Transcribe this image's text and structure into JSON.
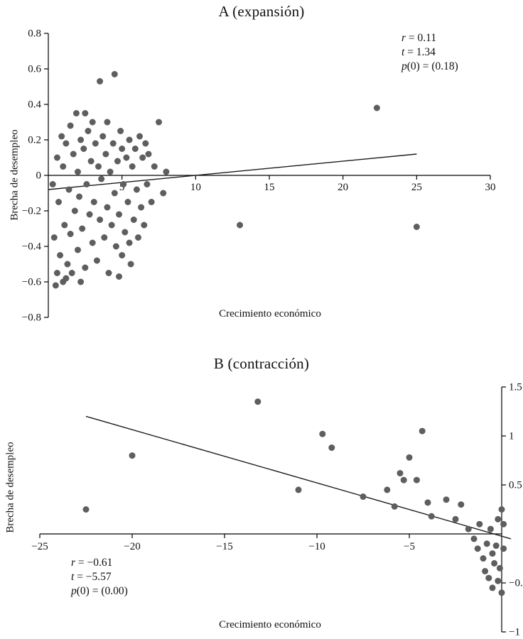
{
  "page": {
    "background": "#ffffff",
    "point_color": "#5e5e5e",
    "axis_color": "#000000"
  },
  "chart_data": [
    {
      "type": "scatter",
      "panel_label": "A",
      "title": "A (expansión)",
      "xlabel": "Crecimiento económico",
      "ylabel": "Brecha de desempleo",
      "xlim": [
        0,
        30
      ],
      "ylim": [
        -0.8,
        0.8
      ],
      "xticks": [
        5,
        10,
        15,
        20,
        25,
        30
      ],
      "yticks": [
        0.8,
        0.6,
        0.4,
        0.2,
        0,
        -0.2,
        -0.4,
        -0.6,
        -0.8
      ],
      "yaxis_side": "left",
      "grid": false,
      "r": 0.11,
      "t": 1.34,
      "p": 0.18,
      "stats_lines": [
        {
          "italic": "r",
          "normal": " = 0.11"
        },
        {
          "italic": "t",
          "normal": " = 1.34"
        },
        {
          "italic": "p",
          "normal": "(0) = (0.18)"
        }
      ],
      "trendline": {
        "x1": 0,
        "y1": -0.08,
        "x2": 25,
        "y2": 0.12
      },
      "points": [
        [
          0.3,
          -0.05
        ],
        [
          0.4,
          -0.35
        ],
        [
          0.5,
          -0.62
        ],
        [
          0.6,
          0.1
        ],
        [
          0.6,
          -0.55
        ],
        [
          0.7,
          -0.15
        ],
        [
          0.8,
          -0.45
        ],
        [
          0.9,
          0.22
        ],
        [
          1.0,
          -0.6
        ],
        [
          1.0,
          0.05
        ],
        [
          1.1,
          -0.28
        ],
        [
          1.2,
          0.18
        ],
        [
          1.2,
          -0.58
        ],
        [
          1.3,
          -0.5
        ],
        [
          1.4,
          -0.08
        ],
        [
          1.5,
          0.28
        ],
        [
          1.5,
          -0.33
        ],
        [
          1.6,
          -0.55
        ],
        [
          1.7,
          0.12
        ],
        [
          1.8,
          -0.2
        ],
        [
          1.9,
          0.35
        ],
        [
          2.0,
          -0.42
        ],
        [
          2.0,
          0.02
        ],
        [
          2.1,
          -0.12
        ],
        [
          2.2,
          0.2
        ],
        [
          2.2,
          -0.6
        ],
        [
          2.3,
          -0.3
        ],
        [
          2.4,
          0.15
        ],
        [
          2.5,
          0.35
        ],
        [
          2.5,
          -0.52
        ],
        [
          2.6,
          -0.05
        ],
        [
          2.7,
          0.25
        ],
        [
          2.8,
          -0.22
        ],
        [
          2.9,
          0.08
        ],
        [
          3.0,
          -0.38
        ],
        [
          3.0,
          0.3
        ],
        [
          3.1,
          -0.15
        ],
        [
          3.2,
          0.18
        ],
        [
          3.3,
          -0.48
        ],
        [
          3.4,
          0.05
        ],
        [
          3.5,
          0.53
        ],
        [
          3.5,
          -0.25
        ],
        [
          3.6,
          -0.02
        ],
        [
          3.7,
          0.22
        ],
        [
          3.8,
          -0.35
        ],
        [
          3.9,
          0.12
        ],
        [
          4.0,
          -0.18
        ],
        [
          4.0,
          0.3
        ],
        [
          4.1,
          -0.55
        ],
        [
          4.2,
          0.02
        ],
        [
          4.3,
          -0.28
        ],
        [
          4.4,
          0.18
        ],
        [
          4.5,
          0.57
        ],
        [
          4.5,
          -0.1
        ],
        [
          4.6,
          -0.4
        ],
        [
          4.7,
          0.08
        ],
        [
          4.8,
          -0.22
        ],
        [
          4.8,
          -0.57
        ],
        [
          4.9,
          0.25
        ],
        [
          5.0,
          -0.45
        ],
        [
          5.0,
          0.15
        ],
        [
          5.1,
          -0.05
        ],
        [
          5.2,
          -0.32
        ],
        [
          5.3,
          0.1
        ],
        [
          5.4,
          -0.15
        ],
        [
          5.5,
          0.2
        ],
        [
          5.5,
          -0.38
        ],
        [
          5.6,
          -0.5
        ],
        [
          5.7,
          0.05
        ],
        [
          5.8,
          -0.25
        ],
        [
          5.9,
          0.15
        ],
        [
          6.0,
          -0.08
        ],
        [
          6.1,
          -0.35
        ],
        [
          6.2,
          0.22
        ],
        [
          6.3,
          -0.18
        ],
        [
          6.4,
          0.1
        ],
        [
          6.5,
          -0.28
        ],
        [
          6.6,
          0.18
        ],
        [
          6.7,
          -0.05
        ],
        [
          6.8,
          0.12
        ],
        [
          7.0,
          -0.15
        ],
        [
          7.2,
          0.05
        ],
        [
          7.5,
          0.3
        ],
        [
          7.8,
          -0.1
        ],
        [
          8.0,
          0.02
        ],
        [
          13.0,
          -0.28
        ],
        [
          22.3,
          0.38
        ],
        [
          25.0,
          -0.29
        ]
      ]
    },
    {
      "type": "scatter",
      "panel_label": "B",
      "title": "B (contracción)",
      "xlabel": "Crecimiento económico",
      "ylabel": "Brecha de desempleo",
      "xlim": [
        -25,
        0
      ],
      "ylim": [
        -1,
        1.5
      ],
      "xticks": [
        -25,
        -20,
        -15,
        -10,
        -5
      ],
      "yticks": [
        1.5,
        1,
        0.5,
        -0.5,
        -1
      ],
      "yaxis_side": "right",
      "grid": false,
      "r": -0.61,
      "t": -5.57,
      "p": 0.0,
      "stats_lines": [
        {
          "italic": "r",
          "normal": " = −0.61"
        },
        {
          "italic": "t",
          "normal": " = −5.57"
        },
        {
          "italic": "p",
          "normal": "(0) = (0.00)"
        }
      ],
      "trendline": {
        "x1": -22.5,
        "y1": 1.2,
        "x2": 0.5,
        "y2": -0.05
      },
      "points": [
        [
          -22.5,
          0.25
        ],
        [
          -20.0,
          0.8
        ],
        [
          -13.2,
          1.35
        ],
        [
          -11.0,
          0.45
        ],
        [
          -9.7,
          1.02
        ],
        [
          -9.2,
          0.88
        ],
        [
          -7.5,
          0.38
        ],
        [
          -6.2,
          0.45
        ],
        [
          -5.8,
          0.28
        ],
        [
          -5.5,
          0.62
        ],
        [
          -5.3,
          0.55
        ],
        [
          -5.0,
          0.78
        ],
        [
          -4.6,
          0.55
        ],
        [
          -4.3,
          1.05
        ],
        [
          -4.0,
          0.32
        ],
        [
          -3.8,
          0.18
        ],
        [
          -3.0,
          0.35
        ],
        [
          -2.5,
          0.15
        ],
        [
          -2.2,
          0.3
        ],
        [
          -1.8,
          0.05
        ],
        [
          -1.5,
          -0.05
        ],
        [
          -1.3,
          -0.15
        ],
        [
          -1.2,
          0.1
        ],
        [
          -1.0,
          -0.25
        ],
        [
          -0.9,
          -0.38
        ],
        [
          -0.8,
          -0.1
        ],
        [
          -0.7,
          -0.45
        ],
        [
          -0.6,
          0.05
        ],
        [
          -0.5,
          -0.2
        ],
        [
          -0.5,
          -0.55
        ],
        [
          -0.4,
          -0.3
        ],
        [
          -0.3,
          -0.12
        ],
        [
          -0.2,
          -0.48
        ],
        [
          -0.2,
          0.15
        ],
        [
          -0.1,
          -0.35
        ],
        [
          0.0,
          0.25
        ],
        [
          0.0,
          -0.6
        ],
        [
          0.1,
          0.1
        ],
        [
          0.1,
          -0.15
        ]
      ]
    }
  ]
}
